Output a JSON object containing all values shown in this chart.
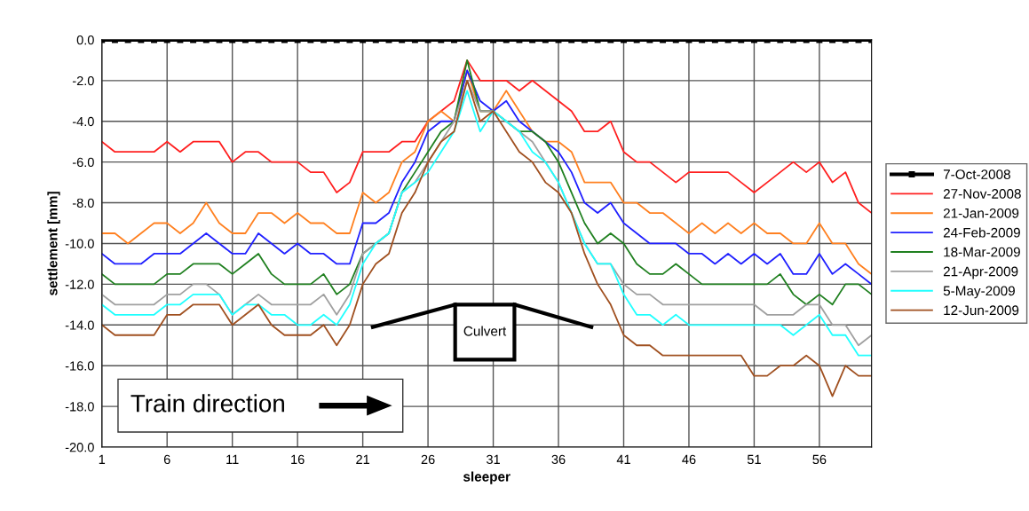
{
  "chart_data": {
    "type": "line",
    "xlabel": "sleeper",
    "ylabel": "settlement [mm]",
    "x": [
      1,
      2,
      3,
      4,
      5,
      6,
      7,
      8,
      9,
      10,
      11,
      12,
      13,
      14,
      15,
      16,
      17,
      18,
      19,
      20,
      21,
      22,
      23,
      24,
      25,
      26,
      27,
      28,
      29,
      30,
      31,
      32,
      33,
      34,
      35,
      36,
      37,
      38,
      39,
      40,
      41,
      42,
      43,
      44,
      45,
      46,
      47,
      48,
      49,
      50,
      51,
      52,
      53,
      54,
      55,
      56,
      57,
      58,
      59,
      60
    ],
    "xlim": [
      1,
      60
    ],
    "xticks": [
      1,
      6,
      11,
      16,
      21,
      26,
      31,
      36,
      41,
      46,
      51,
      56
    ],
    "ylim": [
      -20,
      0
    ],
    "yticks": [
      {
        "value": -20,
        "label": "-20.0"
      },
      {
        "value": -18,
        "label": "-18.0"
      },
      {
        "value": -16,
        "label": "-16.0"
      },
      {
        "value": -14,
        "label": "-14.0"
      },
      {
        "value": -12,
        "label": "-12.0"
      },
      {
        "value": -10,
        "label": "-10.0"
      },
      {
        "value": -8,
        "label": "-8.0"
      },
      {
        "value": -6,
        "label": "-6.0"
      },
      {
        "value": -4,
        "label": "-4.0"
      },
      {
        "value": -2,
        "label": "-2.0"
      },
      {
        "value": 0,
        "label": "0.0"
      }
    ],
    "grid": true,
    "legend": "right",
    "marker": "none",
    "line_style": "solid",
    "annotations": [
      "Culvert",
      "Train direction"
    ],
    "series": [
      {
        "name": "7-Oct-2008",
        "color": "#000000",
        "marker": "square",
        "values": [
          0,
          0,
          0,
          0,
          0,
          0,
          0,
          0,
          0,
          0,
          0,
          0,
          0,
          0,
          0,
          0,
          0,
          0,
          0,
          0,
          0,
          0,
          0,
          0,
          0,
          0,
          0,
          0,
          0,
          0,
          0,
          0,
          0,
          0,
          0,
          0,
          0,
          0,
          0,
          0,
          0,
          0,
          0,
          0,
          0,
          0,
          0,
          0,
          0,
          0,
          0,
          0,
          0,
          0,
          0,
          0,
          0,
          0,
          0,
          0
        ]
      },
      {
        "name": "27-Nov-2008",
        "color": "#ff2020",
        "values": [
          -5,
          -5.5,
          -5.5,
          -5.5,
          -5.5,
          -5,
          -5.5,
          -5,
          -5,
          -5,
          -6,
          -5.5,
          -5.5,
          -6,
          -6,
          -6,
          -6.5,
          -6.5,
          -7.5,
          -7,
          -5.5,
          -5.5,
          -5.5,
          -5,
          -5,
          -4,
          -3.5,
          -3,
          -1,
          -2,
          -2,
          -2,
          -2.5,
          -2,
          -2.5,
          -3,
          -3.5,
          -4.5,
          -4.5,
          -4,
          -5.5,
          -6,
          -6,
          -6.5,
          -7,
          -6.5,
          -6.5,
          -6.5,
          -6.5,
          -7,
          -7.5,
          -7,
          -6.5,
          -6,
          -6.5,
          -6,
          -7,
          -6.5,
          -8,
          -8.5
        ]
      },
      {
        "name": "21-Jan-2009",
        "color": "#ff8020",
        "values": [
          -9.5,
          -9.5,
          -10,
          -9.5,
          -9,
          -9,
          -9.5,
          -9,
          -8,
          -9,
          -9.5,
          -9.5,
          -8.5,
          -8.5,
          -9,
          -8.5,
          -9,
          -9,
          -9.5,
          -9.5,
          -7.5,
          -8,
          -7.5,
          -6,
          -5.5,
          -4,
          -3.5,
          -4,
          -1.5,
          -3.5,
          -3.5,
          -2.5,
          -3.5,
          -4.5,
          -5,
          -5,
          -5.5,
          -7,
          -7,
          -7,
          -8,
          -8,
          -8.5,
          -8.5,
          -9,
          -9.5,
          -9,
          -9.5,
          -9,
          -9.5,
          -9,
          -9.5,
          -9.5,
          -10,
          -10,
          -9,
          -10,
          -10,
          -11,
          -11.5
        ]
      },
      {
        "name": "24-Feb-2009",
        "color": "#2020ff",
        "values": [
          -10.5,
          -11,
          -11,
          -11,
          -10.5,
          -10.5,
          -10.5,
          -10,
          -9.5,
          -10,
          -10.5,
          -10.5,
          -9.5,
          -10,
          -10.5,
          -10,
          -10.5,
          -10.5,
          -11,
          -11,
          -9,
          -9,
          -8.5,
          -7,
          -6,
          -4.5,
          -4,
          -4,
          -1.5,
          -3,
          -3.5,
          -3,
          -4,
          -4.5,
          -5,
          -5.5,
          -6.5,
          -8,
          -8.5,
          -8,
          -9,
          -9.5,
          -10,
          -10,
          -10,
          -10.5,
          -10.5,
          -11,
          -10.5,
          -11,
          -10.5,
          -11,
          -10.5,
          -11.5,
          -11.5,
          -10.5,
          -11.5,
          -11,
          -11.5,
          -12
        ]
      },
      {
        "name": "18-Mar-2009",
        "color": "#208020",
        "values": [
          -11.5,
          -12,
          -12,
          -12,
          -12,
          -11.5,
          -11.5,
          -11,
          -11,
          -11,
          -11.5,
          -11,
          -10.5,
          -11.5,
          -12,
          -12,
          -12,
          -11.5,
          -12.5,
          -12,
          -10.5,
          -10,
          -9.5,
          -7.5,
          -6.5,
          -5.5,
          -4.5,
          -4,
          -1,
          -3.5,
          -3.5,
          -4,
          -4.5,
          -4.5,
          -5,
          -6,
          -7.5,
          -9,
          -10,
          -9.5,
          -10,
          -11,
          -11.5,
          -11.5,
          -11,
          -11.5,
          -12,
          -12,
          -12,
          -12,
          -12,
          -12,
          -11.5,
          -12.5,
          -13,
          -12.5,
          -13,
          -12,
          -12,
          -12.5
        ]
      },
      {
        "name": "21-Apr-2009",
        "color": "#a0a0a0",
        "values": [
          -12.5,
          -13,
          -13,
          -13,
          -13,
          -12.5,
          -12.5,
          -12,
          -12,
          -12.5,
          -13.5,
          -13,
          -12.5,
          -13,
          -13,
          -13,
          -13,
          -12.5,
          -13.5,
          -12.5,
          -10.5,
          -10,
          -9.5,
          -7.5,
          -7,
          -6,
          -5,
          -4,
          -2,
          -3.5,
          -3.5,
          -4,
          -4.5,
          -5,
          -6,
          -7,
          -8.5,
          -10,
          -11,
          -11,
          -12,
          -12.5,
          -12.5,
          -13,
          -13,
          -13,
          -13,
          -13,
          -13,
          -13,
          -13,
          -13.5,
          -13.5,
          -13.5,
          -13,
          -13,
          -14,
          -14,
          -15,
          -14.5
        ]
      },
      {
        "name": "5-May-2009",
        "color": "#20ffff",
        "values": [
          -13,
          -13.5,
          -13.5,
          -13.5,
          -13.5,
          -13,
          -13,
          -12.5,
          -12.5,
          -12.5,
          -13.5,
          -13,
          -13,
          -13.5,
          -13.5,
          -14,
          -14,
          -13.5,
          -14,
          -13,
          -11,
          -10,
          -9.5,
          -7.5,
          -7,
          -6.5,
          -5.5,
          -4.5,
          -2.5,
          -4.5,
          -3.5,
          -4,
          -4.5,
          -5.5,
          -6,
          -7,
          -8.5,
          -10,
          -11,
          -11,
          -12.5,
          -13.5,
          -13.5,
          -14,
          -13.5,
          -14,
          -14,
          -14,
          -14,
          -14,
          -14,
          -14,
          -14,
          -14.5,
          -14,
          -13.5,
          -14.5,
          -14.5,
          -15.5,
          -15.5
        ]
      },
      {
        "name": "12-Jun-2009",
        "color": "#a05020",
        "values": [
          -14,
          -14.5,
          -14.5,
          -14.5,
          -14.5,
          -13.5,
          -13.5,
          -13,
          -13,
          -13,
          -14,
          -13.5,
          -13,
          -14,
          -14.5,
          -14.5,
          -14.5,
          -14,
          -15,
          -14,
          -12,
          -11,
          -10.5,
          -8.5,
          -7.5,
          -6,
          -5,
          -4.5,
          -2,
          -4,
          -3.5,
          -4.5,
          -5.5,
          -6,
          -7,
          -7.5,
          -8.5,
          -10.5,
          -12,
          -13,
          -14.5,
          -15,
          -15,
          -15.5,
          -15.5,
          -15.5,
          -15.5,
          -15.5,
          -15.5,
          -15.5,
          -16.5,
          -16.5,
          -16,
          -16,
          -15.5,
          -16,
          -17.5,
          -16,
          -16.5,
          -16.5
        ]
      }
    ]
  }
}
